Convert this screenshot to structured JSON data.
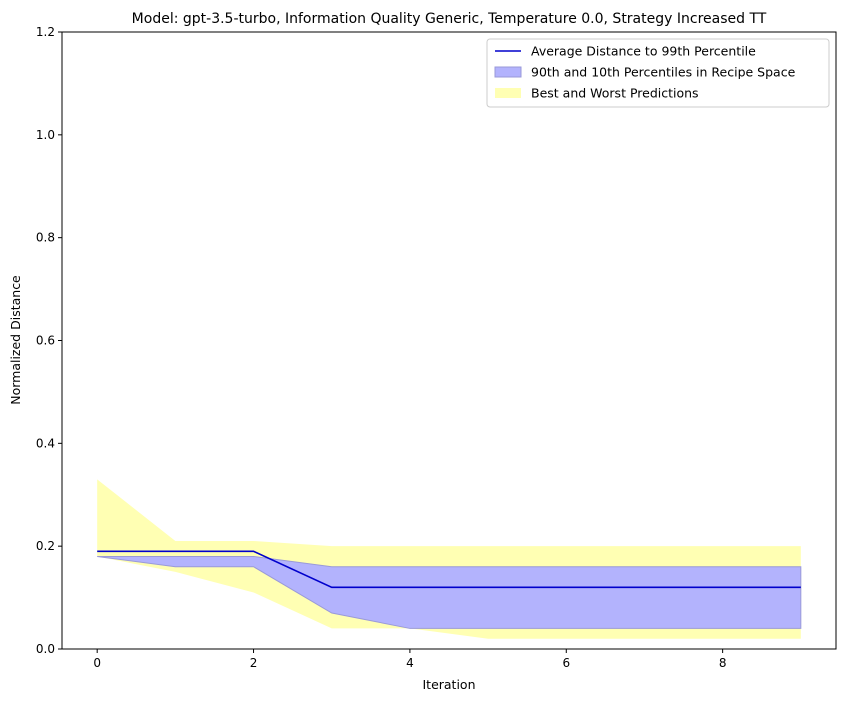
{
  "chart_data": {
    "type": "line",
    "title": "Model: gpt-3.5-turbo, Information Quality Generic, Temperature 0.0, Strategy Increased TT",
    "xlabel": "Iteration",
    "ylabel": "Normalized Distance",
    "xlim": [
      -0.45,
      9.45
    ],
    "ylim": [
      0,
      1.2
    ],
    "xticks": [
      0,
      2,
      4,
      6,
      8
    ],
    "yticks": [
      0.0,
      0.2,
      0.4,
      0.6,
      0.8,
      1.0,
      1.2
    ],
    "xtick_labels": [
      "0",
      "2",
      "4",
      "6",
      "8"
    ],
    "ytick_labels": [
      "0.0",
      "0.2",
      "0.4",
      "0.6",
      "0.8",
      "1.0",
      "1.2"
    ],
    "x": [
      0,
      1,
      2,
      3,
      4,
      5,
      6,
      7,
      8,
      9
    ],
    "legend_position": "top-right",
    "grid": false,
    "series": [
      {
        "name": "Average Distance to 99th Percentile",
        "kind": "line",
        "color": "#0000cc",
        "values": [
          0.19,
          0.19,
          0.19,
          0.12,
          0.12,
          0.12,
          0.12,
          0.12,
          0.12,
          0.12
        ]
      },
      {
        "name": "90th and 10th Percentiles in Recipe Space",
        "kind": "band",
        "color": "#b3b3fd",
        "upper": [
          0.18,
          0.18,
          0.18,
          0.16,
          0.16,
          0.16,
          0.16,
          0.16,
          0.16,
          0.16
        ],
        "lower": [
          0.18,
          0.16,
          0.16,
          0.07,
          0.04,
          0.04,
          0.04,
          0.04,
          0.04,
          0.04
        ]
      },
      {
        "name": "Best and Worst Predictions",
        "kind": "band",
        "color": "#ffffb3",
        "upper": [
          0.33,
          0.21,
          0.21,
          0.2,
          0.2,
          0.2,
          0.2,
          0.2,
          0.2,
          0.2
        ],
        "lower": [
          0.18,
          0.15,
          0.11,
          0.04,
          0.04,
          0.02,
          0.02,
          0.02,
          0.02,
          0.02
        ]
      }
    ]
  }
}
